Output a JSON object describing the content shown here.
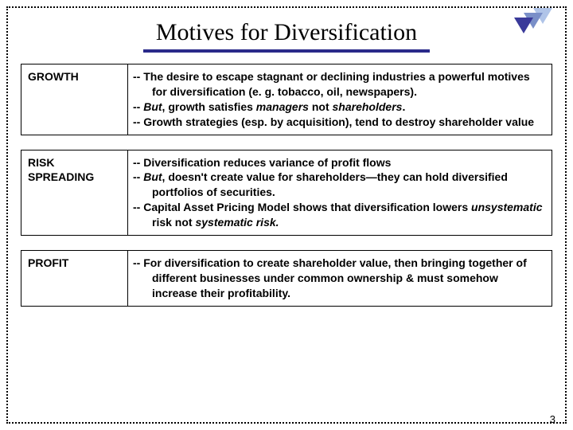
{
  "title": "Motives for Diversification",
  "rows": [
    {
      "heading": "GROWTH",
      "lines": [
        "-- The desire to escape stagnant or declining industries a powerful motives for diversification (e. g. tobacco, oil, newspapers).",
        "-- <em>But</em>, growth satisfies <em>managers</em> not <em>shareholders</em>.",
        "-- Growth strategies (esp. by acquisition), tend to destroy shareholder value"
      ]
    },
    {
      "heading": "RISK SPREADING",
      "lines": [
        "-- Diversification reduces variance of profit flows",
        "-- <em>But</em>, doesn't create value for shareholders—they can hold diversified portfolios of securities.",
        "-- Capital Asset Pricing Model shows that diversification lowers <em>unsystematic</em> risk not <em>systematic risk.</em>"
      ]
    },
    {
      "heading": "PROFIT",
      "lines": [
        "-- For diversification to create shareholder value, then bringing together of different businesses under common ownership & must somehow increase their profitability."
      ]
    }
  ],
  "page_number": "3",
  "colors": {
    "underline": "#2a2a8a",
    "tri_light": "#b0c4e8",
    "tri_mid": "#7a8fc8",
    "tri_dark": "#3a3a9a"
  }
}
